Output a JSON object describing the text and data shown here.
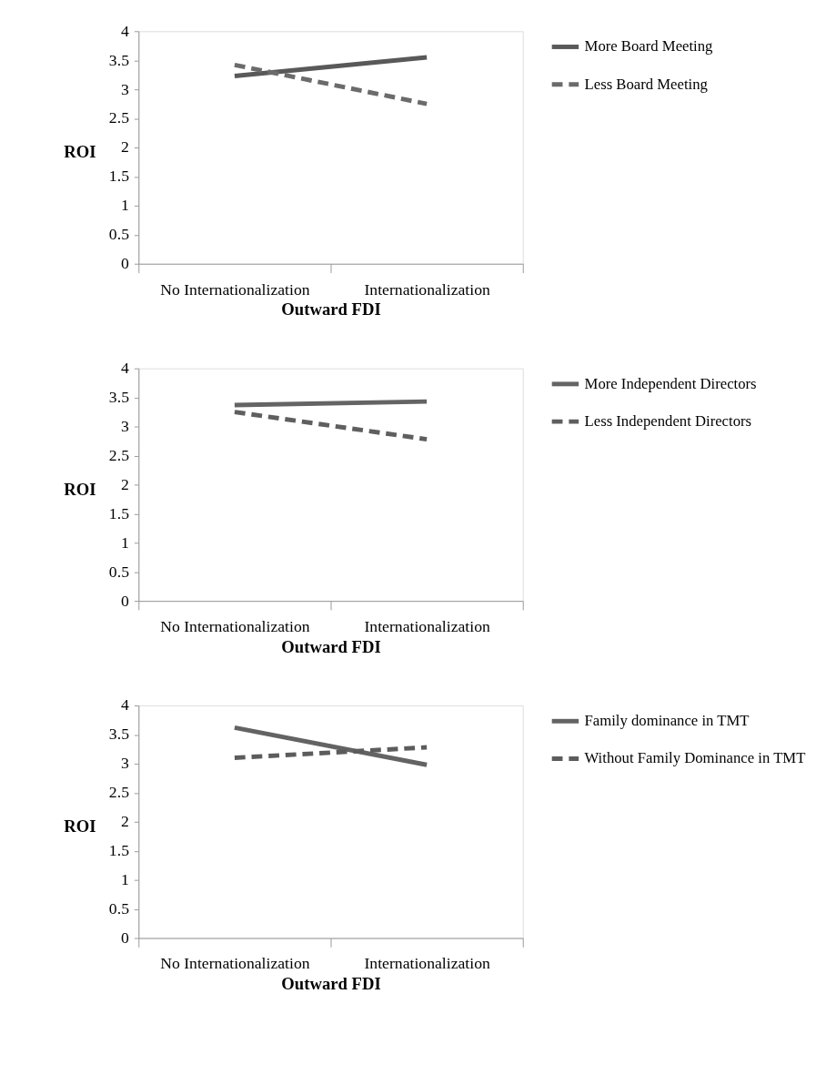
{
  "chart_data": [
    {
      "type": "line",
      "xlabel": "Outward FDI",
      "ylabel": "ROI",
      "categories": [
        "No Internationalization",
        "Internationalization"
      ],
      "ylim": [
        0,
        4
      ],
      "yticks": [
        0,
        0.5,
        1,
        1.5,
        2,
        2.5,
        3,
        3.5,
        4
      ],
      "grid": false,
      "legend": "right",
      "marker": "none",
      "series": [
        {
          "name": "More Board Meeting",
          "color": "#595959",
          "line_style": "solid",
          "values": [
            3.23,
            3.55
          ]
        },
        {
          "name": "Less Board Meeting",
          "color": "#6b6b6b",
          "line_style": "dashed",
          "values": [
            3.42,
            2.75
          ]
        }
      ]
    },
    {
      "type": "line",
      "xlabel": "Outward FDI",
      "ylabel": "ROI",
      "categories": [
        "No Internationalization",
        "Internationalization"
      ],
      "ylim": [
        0,
        4
      ],
      "yticks": [
        0,
        0.5,
        1,
        1.5,
        2,
        2.5,
        3,
        3.5,
        4
      ],
      "grid": false,
      "legend": "right",
      "marker": "none",
      "series": [
        {
          "name": "More Independent Directors",
          "color": "#646464",
          "line_style": "solid",
          "values": [
            3.37,
            3.43
          ]
        },
        {
          "name": "Less Independent Directors",
          "color": "#5f5f5f",
          "line_style": "dashed",
          "values": [
            3.25,
            2.78
          ]
        }
      ]
    },
    {
      "type": "line",
      "xlabel": "Outward FDI",
      "ylabel": "ROI",
      "categories": [
        "No Internationalization",
        "Internationalization"
      ],
      "ylim": [
        0,
        4
      ],
      "yticks": [
        0,
        0.5,
        1,
        1.5,
        2,
        2.5,
        3,
        3.5,
        4
      ],
      "grid": false,
      "legend": "right",
      "marker": "none",
      "series": [
        {
          "name": "Family dominance in TMT",
          "color": "#636363",
          "line_style": "solid",
          "values": [
            3.62,
            2.98
          ]
        },
        {
          "name": "Without Family Dominance in TMT",
          "color": "#5c5c5c",
          "line_style": "dashed",
          "values": [
            3.1,
            3.28
          ]
        }
      ]
    }
  ]
}
